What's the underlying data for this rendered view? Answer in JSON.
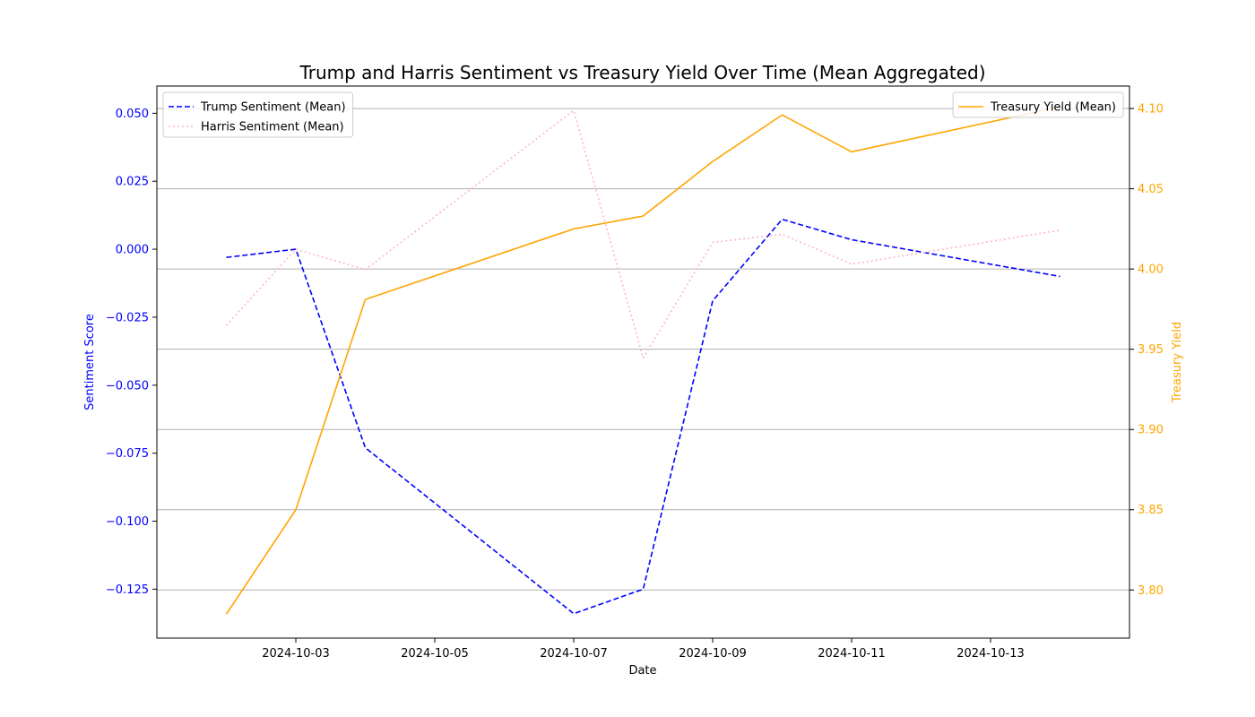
{
  "chart_data": {
    "type": "line",
    "title": "Trump and Harris Sentiment vs Treasury Yield Over Time (Mean Aggregated)",
    "xlabel": "Date",
    "ylabel_left": "Sentiment Score",
    "ylabel_right": "Treasury Yield",
    "x_ticks": [
      "2024-10-03",
      "2024-10-05",
      "2024-10-07",
      "2024-10-09",
      "2024-10-11",
      "2024-10-13"
    ],
    "x_range": [
      "2024-10-01",
      "2024-10-15"
    ],
    "left_axis": {
      "ylim": [
        -0.143,
        0.06
      ],
      "ticks": [
        -0.125,
        -0.1,
        -0.075,
        -0.05,
        -0.025,
        0.0,
        0.025,
        0.05
      ],
      "tick_labels": [
        "−0.125",
        "−0.100",
        "−0.075",
        "−0.050",
        "−0.025",
        "0.000",
        "0.025",
        "0.050"
      ],
      "color": "#0000ff"
    },
    "right_axis": {
      "ylim": [
        3.77,
        4.114
      ],
      "ticks": [
        3.8,
        3.85,
        3.9,
        3.95,
        4.0,
        4.05,
        4.1
      ],
      "tick_labels": [
        "3.80",
        "3.85",
        "3.90",
        "3.95",
        "4.00",
        "4.05",
        "4.10"
      ],
      "color": "#ffa500"
    },
    "grid": "horizontal-right-axis",
    "series": [
      {
        "name": "Trump Sentiment (Mean)",
        "axis": "left",
        "style": "dashed",
        "color": "#0000ff",
        "legend_group": "left",
        "points": [
          [
            "2024-10-02",
            -0.003
          ],
          [
            "2024-10-03",
            0.0
          ],
          [
            "2024-10-04",
            -0.073
          ],
          [
            "2024-10-07",
            -0.134
          ],
          [
            "2024-10-08",
            -0.125
          ],
          [
            "2024-10-09",
            -0.019
          ],
          [
            "2024-10-10",
            0.011
          ],
          [
            "2024-10-11",
            0.0035
          ],
          [
            "2024-10-14",
            -0.01
          ]
        ]
      },
      {
        "name": "Harris Sentiment (Mean)",
        "axis": "left",
        "style": "dotted",
        "color": "#ffb6c1",
        "legend_group": "left",
        "points": [
          [
            "2024-10-02",
            -0.028
          ],
          [
            "2024-10-03",
            0.0
          ],
          [
            "2024-10-04",
            -0.0075
          ],
          [
            "2024-10-07",
            0.051
          ],
          [
            "2024-10-08",
            -0.04
          ],
          [
            "2024-10-09",
            0.0025
          ],
          [
            "2024-10-10",
            0.0055
          ],
          [
            "2024-10-11",
            -0.0055
          ],
          [
            "2024-10-14",
            0.007
          ]
        ]
      },
      {
        "name": "Treasury Yield (Mean)",
        "axis": "right",
        "style": "solid",
        "color": "#ffa500",
        "legend_group": "right",
        "points": [
          [
            "2024-10-02",
            3.785
          ],
          [
            "2024-10-03",
            3.85
          ],
          [
            "2024-10-04",
            3.981
          ],
          [
            "2024-10-07",
            4.025
          ],
          [
            "2024-10-08",
            4.033
          ],
          [
            "2024-10-09",
            4.067
          ],
          [
            "2024-10-10",
            4.096
          ],
          [
            "2024-10-11",
            4.073
          ],
          [
            "2024-10-14",
            4.101
          ]
        ]
      }
    ]
  }
}
